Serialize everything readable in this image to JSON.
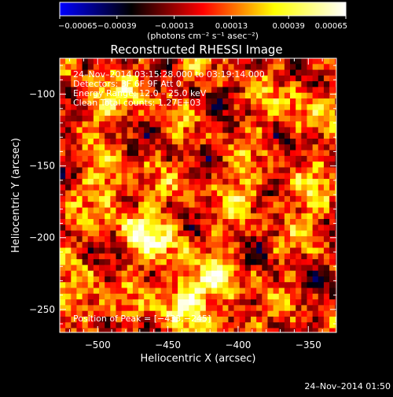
{
  "chart_data": {
    "type": "heatmap",
    "title": "Reconstructed RHESSI Image",
    "xlabel": "Heliocentric X (arcsec)",
    "ylabel": "Heliocentric Y (arcsec)",
    "xlim": [
      -527,
      -330
    ],
    "ylim": [
      -266,
      -75
    ],
    "xticks": [
      -500,
      -450,
      -400,
      -350
    ],
    "yticks": [
      -100,
      -150,
      -200,
      -250
    ],
    "xtick_labels": [
      "−500",
      "−450",
      "−400",
      "−350"
    ],
    "ytick_labels": [
      "−100",
      "−150",
      "−200",
      "−250"
    ],
    "colorbar": {
      "min": -0.00065,
      "max": 0.00065,
      "ticks": [
        -0.00065,
        -0.00039,
        -0.00013,
        0.00013,
        0.00039,
        0.00065
      ],
      "tick_labels": [
        "−0.00065",
        "−0.00039",
        "−0.00013",
        "0.00013",
        "0.00039",
        "0.00065"
      ],
      "units": "(photons cm⁻² s⁻¹ asec⁻²)",
      "stops": [
        "#0000ff",
        "#000000",
        "#ff0000",
        "#ffff00",
        "#ffffff"
      ]
    },
    "grid": false,
    "annotations": [
      "24–Nov–2014 03:15:28.000 to 03:19:14.000",
      "Detectors: 3F 6F 9F  Att 0",
      "Energy Range: 12.0 – 25.0 keV",
      "Clean     Total counts: 1.27E+03"
    ],
    "peak_label": "Position of Peak = [−433,−245]",
    "peak": {
      "x": -433,
      "y": -245
    },
    "pixel_size_arcsec": 4,
    "hotspots": [
      {
        "x": -500,
        "y": -110,
        "a": 0.5
      },
      {
        "x": -490,
        "y": -165,
        "a": 0.6
      },
      {
        "x": -470,
        "y": -195,
        "a": 0.7
      },
      {
        "x": -445,
        "y": -205,
        "a": 0.5
      },
      {
        "x": -440,
        "y": -245,
        "a": 1.0
      },
      {
        "x": -415,
        "y": -230,
        "a": 0.6
      },
      {
        "x": -395,
        "y": -165,
        "a": 0.5
      },
      {
        "x": -360,
        "y": -110,
        "a": 0.5
      },
      {
        "x": -345,
        "y": -175,
        "a": 0.5
      },
      {
        "x": -510,
        "y": -245,
        "a": 0.6
      },
      {
        "x": -405,
        "y": -260,
        "a": 0.4
      },
      {
        "x": -470,
        "y": -95,
        "a": 0.4
      }
    ]
  },
  "footer_timestamp": "24–Nov–2014 01:50"
}
